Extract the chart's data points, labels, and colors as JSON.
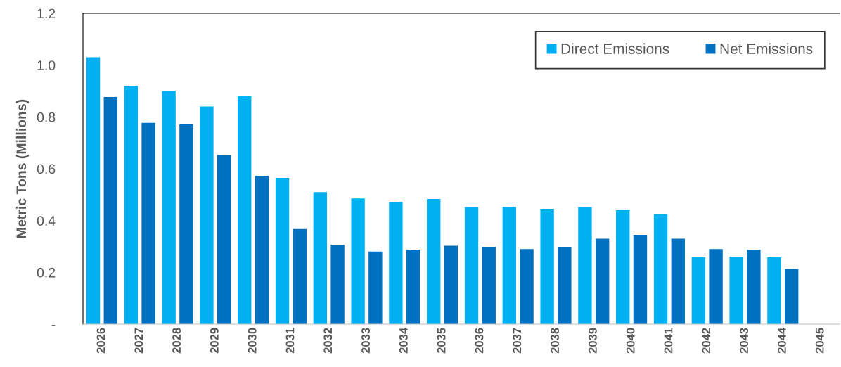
{
  "chart_data": {
    "type": "bar",
    "ylabel": "Metric Tons (Millions)",
    "categories": [
      "2026",
      "2027",
      "2028",
      "2029",
      "2030",
      "2031",
      "2032",
      "2033",
      "2034",
      "2035",
      "2036",
      "2037",
      "2038",
      "2039",
      "2040",
      "2041",
      "2042",
      "2043",
      "2044",
      "2045"
    ],
    "series": [
      {
        "name": "Direct Emissions",
        "color": "#00b0f0",
        "values": [
          1.03,
          0.92,
          0.9,
          0.84,
          0.88,
          0.565,
          0.51,
          0.485,
          0.472,
          0.483,
          0.453,
          0.453,
          0.445,
          0.453,
          0.44,
          0.425,
          0.258,
          0.26,
          0.258,
          null
        ]
      },
      {
        "name": "Net Emissions",
        "color": "#0070c0",
        "values": [
          0.877,
          0.777,
          0.771,
          0.654,
          0.573,
          0.367,
          0.307,
          0.28,
          0.288,
          0.303,
          0.298,
          0.29,
          0.296,
          0.33,
          0.345,
          0.33,
          0.29,
          0.287,
          0.213,
          null
        ]
      }
    ],
    "ylim": [
      0,
      1.2
    ],
    "yticks": [
      {
        "value": 0,
        "label": "-"
      },
      0.2,
      0.4,
      0.6,
      0.8,
      {
        "value": 1,
        "label": "1.0"
      },
      1.2
    ],
    "grid": false,
    "legend": "top right"
  }
}
